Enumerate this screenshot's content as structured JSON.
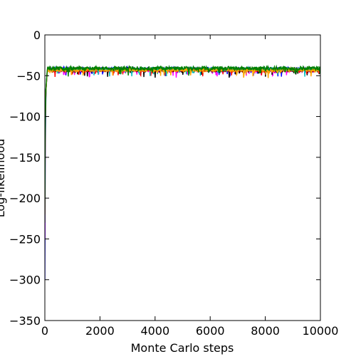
{
  "chart_data": {
    "type": "line",
    "title": "",
    "xlabel": "Monte Carlo steps",
    "ylabel": "Log-likelihood",
    "xlim": [
      0,
      10000
    ],
    "ylim": [
      -350,
      0
    ],
    "xticks": [
      0,
      2000,
      4000,
      6000,
      8000,
      10000
    ],
    "yticks": [
      0,
      -50,
      -100,
      -150,
      -200,
      -250,
      -300,
      -350
    ],
    "xtick_labels": [
      "0",
      "2000",
      "4000",
      "6000",
      "8000",
      "10000"
    ],
    "ytick_labels": [
      "0",
      "−50",
      "−100",
      "−150",
      "−200",
      "−250",
      "−300",
      "−350"
    ],
    "grid": false,
    "legend": "none",
    "series": [
      {
        "color": "#0000ff",
        "start_y": -300,
        "plateau_mean": -42,
        "noise": 2.5
      },
      {
        "color": "#ff00ff",
        "start_y": -250,
        "plateau_mean": -43,
        "noise": 2.5
      },
      {
        "color": "#000000",
        "start_y": -200,
        "plateau_mean": -43,
        "noise": 2.5
      },
      {
        "color": "#ff0000",
        "start_y": -220,
        "plateau_mean": -43,
        "noise": 2.0
      },
      {
        "color": "#00bfbf",
        "start_y": -180,
        "plateau_mean": -42,
        "noise": 2.0
      },
      {
        "color": "#ffa500",
        "start_y": -160,
        "plateau_mean": -43,
        "noise": 2.0
      },
      {
        "color": "#008000",
        "start_y": -230,
        "plateau_mean": -41,
        "noise": 2.5
      }
    ]
  }
}
